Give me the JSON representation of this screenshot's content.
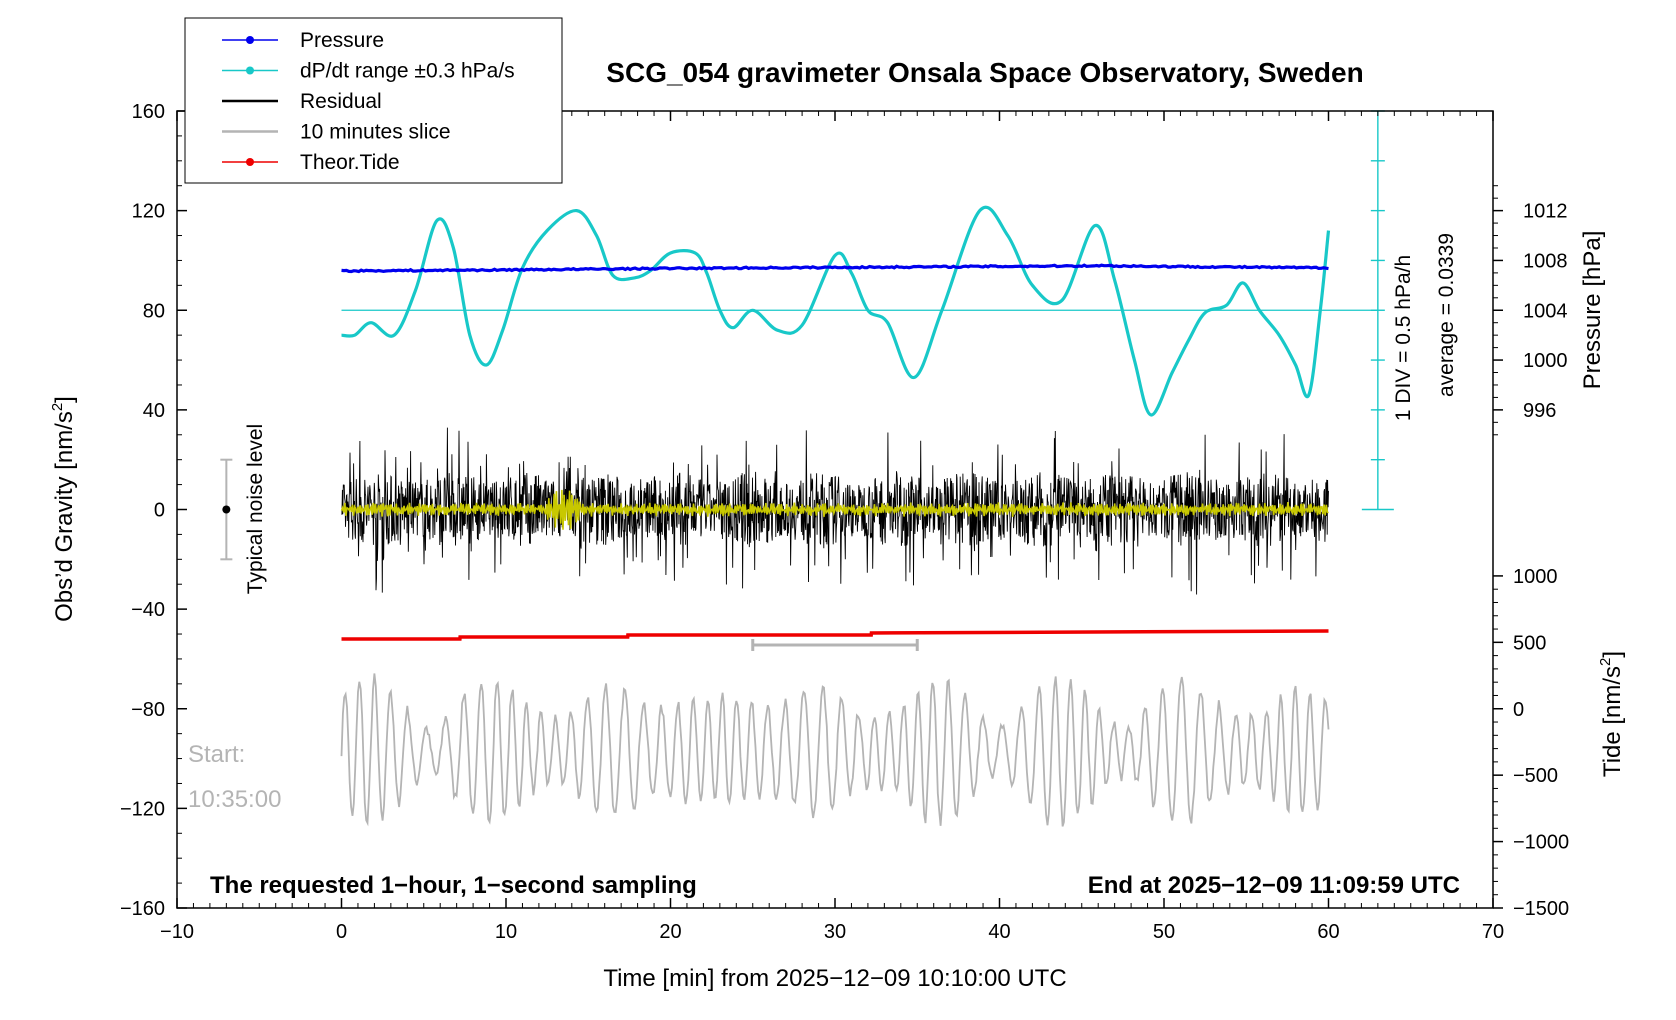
{
  "chart_data": {
    "type": "line",
    "title": "SCG_054 gravimeter Onsala Space Observatory, Sweden",
    "xlabel": "Time [min] from 2025−12−09 10:10:00 UTC",
    "ylabel_left": "Obs’d Gravity [nm/s",
    "ylabel_left_sup": "2",
    "ylabel_left_close": "]",
    "ylabel_right_pressure": "Pressure [hPa]",
    "ylabel_right_tide": "Tide [nm/s",
    "ylabel_right_tide_sup": "2",
    "ylabel_right_tide_close": "]",
    "xlim": [
      -10,
      70
    ],
    "ylim": [
      -160,
      160
    ],
    "x_ticks": [
      -10,
      0,
      10,
      20,
      30,
      40,
      50,
      60,
      70
    ],
    "x_tick_labels": [
      "−10",
      "0",
      "10",
      "20",
      "30",
      "40",
      "50",
      "60",
      "70"
    ],
    "y_ticks": [
      160,
      120,
      80,
      40,
      0,
      -40,
      -80,
      -120,
      -160
    ],
    "y_tick_labels": [
      "160",
      "120",
      "80",
      "40",
      "0",
      "−40",
      "−80",
      "−120",
      "−160"
    ],
    "pressure_axis": {
      "ticks": [
        1012,
        1008,
        1004,
        1000,
        996
      ],
      "tick_labels": [
        "1012",
        "1008",
        "1004",
        "1000",
        "996"
      ],
      "map_hpa": [
        1004,
        996
      ],
      "map_gravity": [
        80,
        40
      ]
    },
    "tide_axis": {
      "ticks": [
        1000,
        500,
        0,
        -500,
        -1000,
        -1500
      ],
      "tick_labels": [
        "1000",
        "500",
        "0",
        "−500",
        "−1000",
        "−1500"
      ],
      "map_tide": [
        0,
        -1500
      ],
      "map_gravity": [
        -80,
        -160
      ]
    },
    "legend": [
      {
        "label": "Pressure",
        "color": "#0000ee",
        "marker": true
      },
      {
        "label": "dP/dt range ±0.3 hPa/s",
        "color": "#18c8c8",
        "marker": true
      },
      {
        "label": "Residual",
        "color": "#000000",
        "marker": false
      },
      {
        "label": "10 minutes slice",
        "color": "#b4b4b4",
        "marker": false
      },
      {
        "label": "Theor.Tide",
        "color": "#ee0000",
        "marker": true
      }
    ],
    "colors": {
      "pressure": "#0000ee",
      "dpdt": "#18c8c8",
      "residual": "#000000",
      "smoothed": "#c8c800",
      "slice": "#b4b4b4",
      "tide": "#ee0000",
      "noise": "#b4b4b4"
    },
    "series": [
      {
        "name": "Pressure",
        "unit": "gravity-axis units",
        "x": [
          0,
          10,
          20,
          30,
          40,
          46,
          50,
          55,
          60
        ],
        "values": [
          95.8,
          96.2,
          96.8,
          97.2,
          97.6,
          97.9,
          97.6,
          97.3,
          97.0
        ]
      },
      {
        "name": "dP/dt range ±0.3 hPa/s",
        "unit": "gravity-axis units",
        "x": [
          0,
          0.8,
          1.8,
          3.2,
          4.5,
          5.8,
          6.8,
          7.8,
          8.8,
          9.8,
          11,
          12.5,
          14.3,
          15.5,
          16.5,
          17.8,
          18.8,
          20,
          21.5,
          22.2,
          23,
          23.8,
          25,
          26.5,
          28,
          30,
          31,
          32,
          33.2,
          34.8,
          36.5,
          38.8,
          40.5,
          42,
          43.8,
          45.8,
          47,
          48.2,
          49.2,
          50.5,
          51.5,
          52.5,
          53.8,
          54.8,
          55.8,
          57,
          58,
          58.8,
          59.5,
          60
        ],
        "values": [
          70,
          70,
          75,
          70,
          88,
          116,
          105,
          70,
          58,
          72,
          97,
          112,
          120,
          110,
          94,
          93,
          96,
          103,
          103,
          95,
          80,
          73,
          80,
          72,
          74,
          102,
          95,
          80,
          75,
          53,
          80,
          120,
          110,
          90,
          84,
          114,
          92,
          60,
          38,
          55,
          68,
          79,
          82,
          91,
          80,
          70,
          58,
          46,
          80,
          112
        ]
      },
      {
        "name": "Theor.Tide",
        "unit": "nm/s2 (tide axis)",
        "x": [
          0,
          7.2,
          7.21,
          17.4,
          17.41,
          32.2,
          32.21,
          60
        ],
        "values": [
          525,
          525,
          540,
          540,
          555,
          555,
          570,
          585
        ]
      }
    ],
    "residual": {
      "name": "Residual",
      "x_start": 0,
      "x_end": 60,
      "typical_amplitude": 12,
      "range": [
        -50,
        55
      ]
    },
    "slice_bracket": {
      "x_start": 25,
      "x_end": 35,
      "tide": 480
    },
    "noise_level": {
      "x": -7,
      "center": 0,
      "half_range": 20,
      "label": "Typical noise level"
    },
    "reference_line": {
      "value": 80,
      "x_start": 0,
      "x_end": 63
    },
    "dpdt_scale": {
      "x": 63,
      "bottom": 0,
      "top": 160,
      "division": 0.5
    },
    "annotations": {
      "div_label": "1 DIV = 0.5 hPa/h",
      "average_label": "average = 0.0339",
      "start_label": "Start:",
      "start_time": "10:35:00",
      "note_left": "The requested 1−hour, 1−second sampling",
      "note_right": "End at 2025−12−09 11:09:59 UTC"
    }
  }
}
